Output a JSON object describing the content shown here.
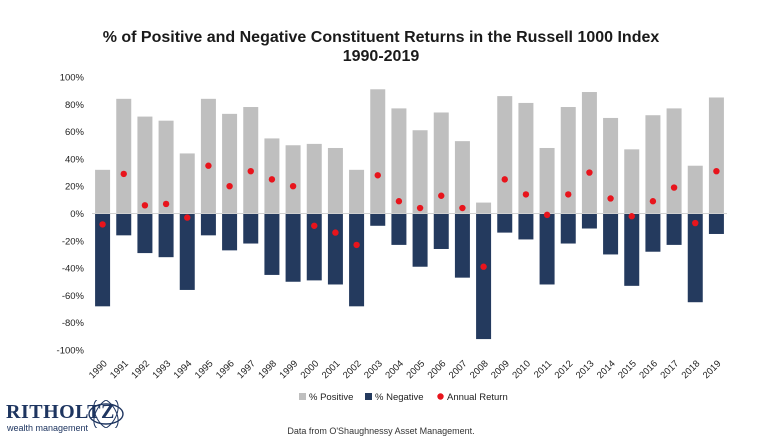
{
  "chart_data": {
    "type": "bar",
    "title_lines": [
      "% of Positive and Negative Constituent Returns in the Russell 1000 Index",
      "1990-2019"
    ],
    "categories": [
      "1990",
      "1991",
      "1992",
      "1993",
      "1994",
      "1995",
      "1996",
      "1997",
      "1998",
      "1999",
      "2000",
      "2001",
      "2002",
      "2003",
      "2004",
      "2005",
      "2006",
      "2007",
      "2008",
      "2009",
      "2010",
      "2011",
      "2012",
      "2013",
      "2014",
      "2015",
      "2016",
      "2017",
      "2018",
      "2019"
    ],
    "series": [
      {
        "name": "% Positive",
        "kind": "bar",
        "color": "#bfbfbf",
        "values": [
          32,
          84,
          71,
          68,
          44,
          84,
          73,
          78,
          55,
          50,
          51,
          48,
          32,
          91,
          77,
          61,
          74,
          53,
          8,
          86,
          81,
          48,
          78,
          89,
          70,
          47,
          72,
          77,
          35,
          85
        ]
      },
      {
        "name": "% Negative",
        "kind": "bar",
        "color": "#243a5e",
        "values": [
          -68,
          -16,
          -29,
          -32,
          -56,
          -16,
          -27,
          -22,
          -45,
          -50,
          -49,
          -52,
          -68,
          -9,
          -23,
          -39,
          -26,
          -47,
          -92,
          -14,
          -19,
          -52,
          -22,
          -11,
          -30,
          -53,
          -28,
          -23,
          -65,
          -15
        ]
      },
      {
        "name": "Annual Return",
        "kind": "point",
        "color": "#e8141c",
        "values": [
          -8,
          29,
          6,
          7,
          -3,
          35,
          20,
          31,
          25,
          20,
          -9,
          -14,
          -23,
          28,
          9,
          4,
          13,
          4,
          -39,
          25,
          14,
          -1,
          14,
          30,
          11,
          -2,
          9,
          19,
          -7,
          31
        ]
      }
    ],
    "y_ticks": [
      "100%",
      "80%",
      "60%",
      "40%",
      "20%",
      "0%",
      "-20%",
      "-40%",
      "-60%",
      "-80%",
      "-100%"
    ],
    "ylim": [
      -100,
      100
    ],
    "legend_position": "bottom"
  },
  "logo": {
    "main": "RITHOLTZ",
    "sub": "wealth management"
  },
  "source_note": "Data from O'Shaughnessy Asset Management."
}
